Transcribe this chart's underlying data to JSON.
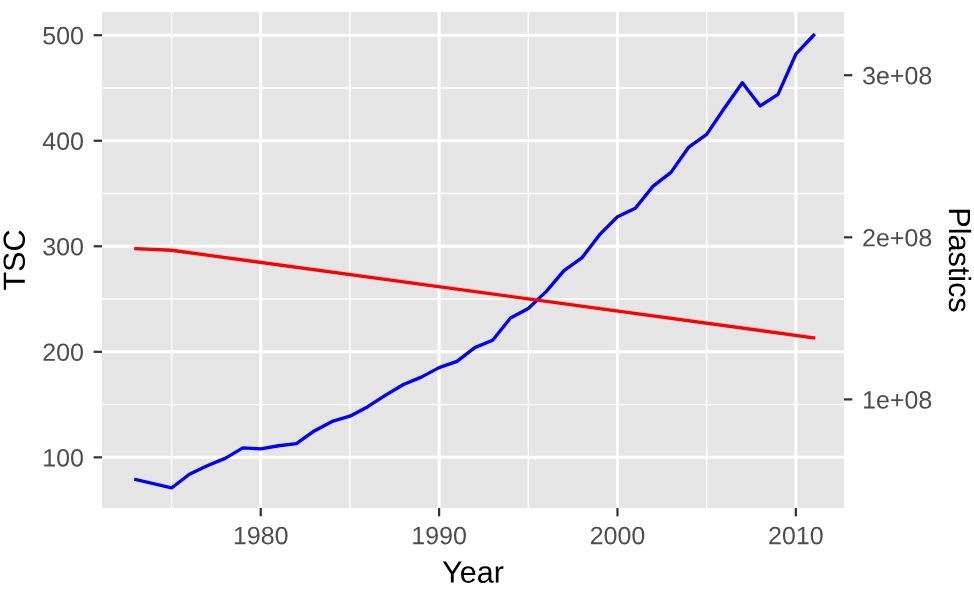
{
  "chart_data": {
    "type": "line",
    "xlabel": "Year",
    "ylabel": "TSC",
    "y2label": "Plastics",
    "xlim": [
      1971.1,
      2012.7
    ],
    "xticks": [
      1980,
      1990,
      2000,
      2010
    ],
    "ylim": [
      52,
      522
    ],
    "yticks": [
      100,
      200,
      300,
      400,
      500
    ],
    "y2lim": [
      33000000,
      339000000
    ],
    "y2ticks": [
      {
        "value": 100000000,
        "label": "1e+08"
      },
      {
        "value": 200000000,
        "label": "2e+08"
      },
      {
        "value": 300000000,
        "label": "3e+08"
      }
    ],
    "grid": true,
    "series": [
      {
        "color": "#0000ff",
        "x": [
          1973,
          1975,
          1976,
          1977,
          1978,
          1979,
          1980,
          1981,
          1982,
          1983,
          1984,
          1985,
          1986,
          1987,
          1988,
          1989,
          1990,
          1991,
          1992,
          1993,
          1994,
          1995,
          1996,
          1997,
          1998,
          1999,
          2000,
          2001,
          2002,
          2003,
          2004,
          2005,
          2006,
          2007,
          2008,
          2009,
          2010,
          2011
        ],
        "values": [
          79,
          71,
          84,
          92,
          99,
          109,
          108,
          111,
          113,
          125,
          134,
          139,
          148,
          159,
          169,
          176,
          185,
          191,
          204,
          211,
          232,
          241,
          257,
          277,
          289,
          311,
          328,
          336,
          357,
          370,
          394,
          406,
          431,
          455,
          433,
          444,
          482,
          500
        ]
      },
      {
        "color": "#ff0000",
        "axis": "y2",
        "x": [
          1973,
          1975,
          2011
        ],
        "values": [
          193000000,
          192000000,
          138000000
        ]
      }
    ]
  }
}
